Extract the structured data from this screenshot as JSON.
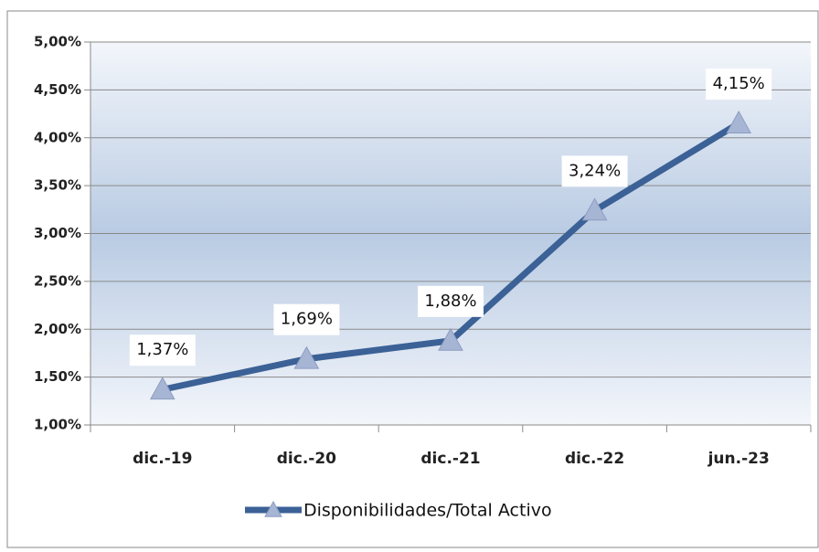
{
  "chart_data": {
    "type": "line",
    "categories": [
      "dic.-19",
      "dic.-20",
      "dic.-21",
      "dic.-22",
      "jun.-23"
    ],
    "series": [
      {
        "name": "Disponibilidades/Total Activo",
        "color": "#3b6196",
        "values": [
          1.37,
          1.69,
          1.88,
          3.24,
          4.15
        ],
        "value_labels": [
          "1,37%",
          "1,69%",
          "1,88%",
          "3,24%",
          "4,15%"
        ]
      }
    ],
    "ylim": [
      1,
      5
    ],
    "yticks": [
      {
        "value": 1,
        "label": "1,00%"
      },
      {
        "value": 1.5,
        "label": "1,50%"
      },
      {
        "value": 2,
        "label": "2,00%"
      },
      {
        "value": 2.5,
        "label": "2,50%"
      },
      {
        "value": 3,
        "label": "3,00%"
      },
      {
        "value": 3.5,
        "label": "3,50%"
      },
      {
        "value": 4,
        "label": "4,00%"
      },
      {
        "value": 4.5,
        "label": "4,50%"
      },
      {
        "value": 5,
        "label": "5,00%"
      }
    ],
    "grid": true,
    "legend": "bottom"
  }
}
